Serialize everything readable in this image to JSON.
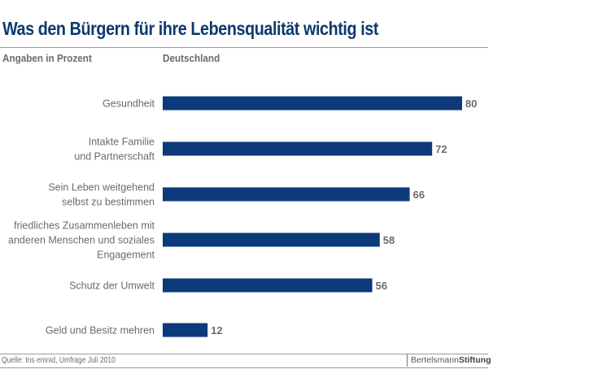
{
  "chart_data": {
    "type": "bar",
    "orientation": "horizontal",
    "title": "Was den Bürgern für ihre Lebensqualität wichtig ist",
    "subtitle": "Angaben in Prozent",
    "series_label": "Deutschland",
    "categories": [
      [
        "Gesundheit"
      ],
      [
        "Intakte Familie",
        "und Partnerschaft"
      ],
      [
        "Sein Leben weitgehend",
        "selbst zu bestimmen"
      ],
      [
        "friedliches Zusammenleben mit",
        "anderen Menschen und soziales",
        "Engagement"
      ],
      [
        "Schutz der Umwelt"
      ],
      [
        "Geld und Besitz mehren"
      ]
    ],
    "values": [
      80,
      72,
      66,
      58,
      56,
      12
    ],
    "xlim": [
      0,
      100
    ],
    "grid": false,
    "bar_color": "#0d3a7a",
    "label_color": "#6b6b6b",
    "source": "Quelle: tns emnid, Umfrage Juli 2010"
  },
  "logo": {
    "part1": "Bertelsmann",
    "part2": "Stiftung"
  }
}
